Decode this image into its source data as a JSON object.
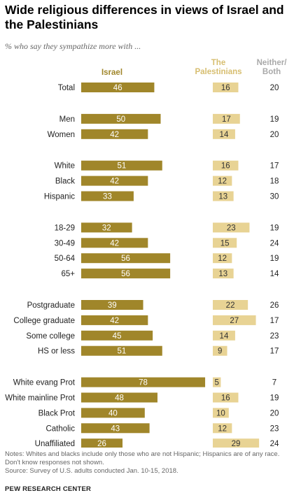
{
  "title": "Wide religious differences in views of Israel and the Palestinians",
  "subtitle": "% who say they sympathize more with ...",
  "headers": {
    "israel": "Israel",
    "palestinians_line1": "The",
    "palestinians_line2": "Palestinians",
    "neither_line1": "Neither/",
    "neither_line2": "Both"
  },
  "colors": {
    "israel": "#a0862a",
    "palestinians": "#e8d394",
    "neither_text": "#222222"
  },
  "chart_data": {
    "type": "bar",
    "layout": "grouped horizontal bars with side-by-side panels",
    "series": [
      {
        "name": "Israel",
        "values": [
          46,
          50,
          42,
          51,
          42,
          33,
          32,
          42,
          56,
          56,
          39,
          42,
          45,
          51,
          78,
          48,
          40,
          43,
          26
        ]
      },
      {
        "name": "The Palestinians",
        "values": [
          16,
          17,
          14,
          16,
          12,
          13,
          23,
          15,
          12,
          13,
          22,
          27,
          14,
          9,
          5,
          16,
          10,
          12,
          29
        ]
      },
      {
        "name": "Neither/ Both",
        "values": [
          20,
          19,
          20,
          17,
          18,
          30,
          19,
          24,
          19,
          14,
          26,
          17,
          23,
          17,
          7,
          19,
          20,
          23,
          24
        ]
      }
    ],
    "categories": [
      "Total",
      "Men",
      "Women",
      "White",
      "Black",
      "Hispanic",
      "18-29",
      "30-49",
      "50-64",
      "65+",
      "Postgraduate",
      "College graduate",
      "Some college",
      "HS or less",
      "White evang Prot",
      "White mainline Prot",
      "Black Prot",
      "Catholic",
      "Unaffiliated"
    ],
    "groups": [
      1,
      2,
      2,
      3,
      3,
      3,
      4,
      4,
      4,
      4,
      5,
      5,
      5,
      5,
      6,
      6,
      6,
      6,
      6
    ]
  },
  "notes": {
    "line1": "Notes: Whites and blacks include only those who are not Hispanic; Hispanics are of any race.",
    "line2": "Don't know responses not shown.",
    "line3": "Source: Survey of U.S. adults conducted Jan. 10-15, 2018."
  },
  "org": "PEW RESEARCH CENTER"
}
